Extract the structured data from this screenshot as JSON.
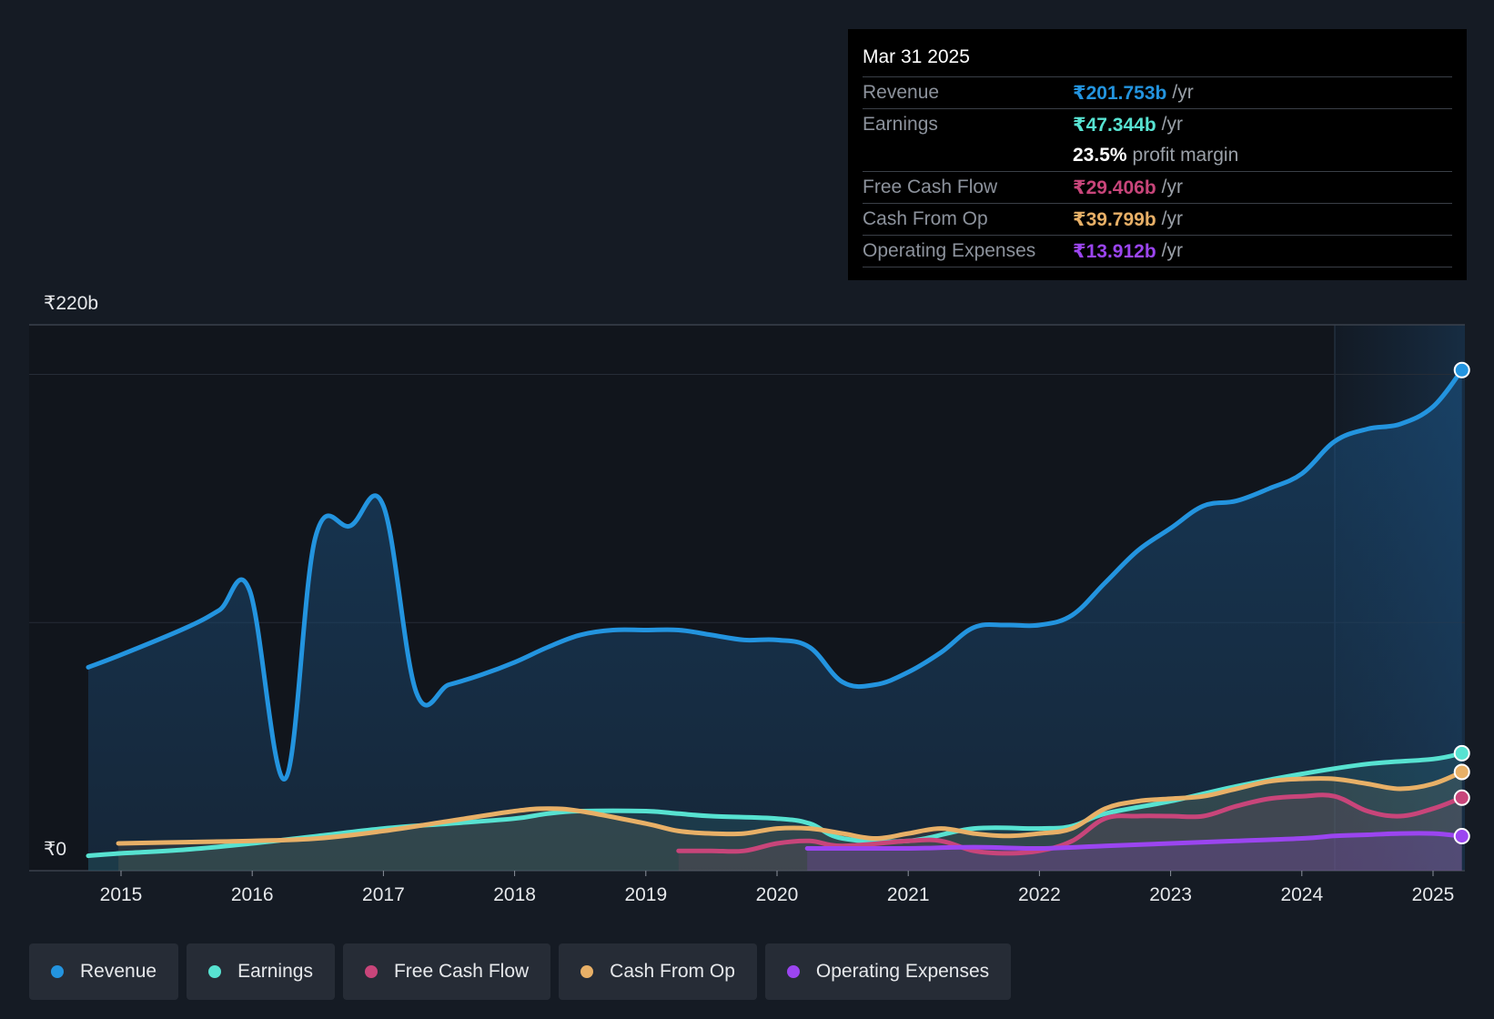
{
  "y_axis": {
    "top_label": "₹220b",
    "bottom_label": "₹0"
  },
  "tooltip": {
    "date": "Mar 31 2025",
    "rows": [
      {
        "label": "Revenue",
        "value": "₹201.753b",
        "unit": "/yr",
        "color": "#2394df"
      },
      {
        "label": "Earnings",
        "value": "₹47.344b",
        "unit": "/yr",
        "color": "#57e2d1"
      },
      {
        "label": "",
        "value": "23.5%",
        "unit": "profit margin",
        "color": "#ffffff"
      },
      {
        "label": "Free Cash Flow",
        "value": "₹29.406b",
        "unit": "/yr",
        "color": "#c8457a"
      },
      {
        "label": "Cash From Op",
        "value": "₹39.799b",
        "unit": "/yr",
        "color": "#e8b067"
      },
      {
        "label": "Operating Expenses",
        "value": "₹13.912b",
        "unit": "/yr",
        "color": "#9b45f0"
      }
    ]
  },
  "legend": [
    {
      "label": "Revenue",
      "color": "#2394df"
    },
    {
      "label": "Earnings",
      "color": "#57e2d1"
    },
    {
      "label": "Free Cash Flow",
      "color": "#c8457a"
    },
    {
      "label": "Cash From Op",
      "color": "#e8b067"
    },
    {
      "label": "Operating Expenses",
      "color": "#9b45f0"
    }
  ],
  "chart_data": {
    "type": "line",
    "title": "",
    "xlabel": "",
    "ylabel": "",
    "x_ticks": [
      "2015",
      "2016",
      "2017",
      "2018",
      "2019",
      "2020",
      "2021",
      "2022",
      "2023",
      "2024",
      "2025"
    ],
    "ylim": [
      0,
      220
    ],
    "grid": true,
    "legend_position": "bottom",
    "series": [
      {
        "name": "Revenue",
        "color": "#2394df",
        "x": [
          2014.75,
          2015.0,
          2015.5,
          2015.75,
          2015.98,
          2016.25,
          2016.48,
          2016.75,
          2017.0,
          2017.25,
          2017.5,
          2017.75,
          2018.0,
          2018.25,
          2018.5,
          2018.75,
          2019.0,
          2019.25,
          2019.5,
          2019.75,
          2020.0,
          2020.25,
          2020.5,
          2020.75,
          2021.0,
          2021.25,
          2021.5,
          2021.75,
          2022.0,
          2022.25,
          2022.5,
          2022.75,
          2023.0,
          2023.25,
          2023.5,
          2023.75,
          2024.0,
          2024.25,
          2024.5,
          2024.75,
          2025.0,
          2025.22
        ],
        "y": [
          82,
          87,
          98,
          105,
          113,
          37,
          134,
          139,
          147,
          72,
          75,
          79,
          84,
          90,
          95,
          97,
          97,
          97,
          95,
          93,
          93,
          90,
          76,
          75,
          80,
          88,
          98,
          99,
          99,
          103,
          116,
          129,
          138,
          147,
          149,
          154,
          160,
          173,
          178,
          180,
          187,
          201.753
        ]
      },
      {
        "name": "Earnings",
        "color": "#57e2d1",
        "x": [
          2014.75,
          2015.0,
          2015.5,
          2016.0,
          2016.5,
          2017.0,
          2017.5,
          2018.0,
          2018.25,
          2018.5,
          2019.0,
          2019.25,
          2019.5,
          2020.0,
          2020.25,
          2020.5,
          2021.0,
          2021.5,
          2022.0,
          2022.25,
          2022.5,
          2023.0,
          2023.5,
          2024.0,
          2024.5,
          2025.0,
          2025.22
        ],
        "y": [
          6,
          7,
          8.5,
          11,
          14,
          17,
          19,
          21,
          23,
          24,
          24,
          23,
          22,
          21,
          19,
          13,
          12,
          17,
          17,
          18,
          23,
          28,
          34,
          39,
          43,
          45,
          47.344
        ]
      },
      {
        "name": "Free Cash Flow",
        "color": "#c8457a",
        "x": [
          2019.25,
          2019.5,
          2019.75,
          2020.0,
          2020.25,
          2020.5,
          2021.0,
          2021.25,
          2021.5,
          2021.75,
          2022.0,
          2022.25,
          2022.5,
          2022.75,
          2023.0,
          2023.25,
          2023.5,
          2023.75,
          2024.0,
          2024.25,
          2024.5,
          2024.75,
          2025.0,
          2025.22
        ],
        "y": [
          8,
          8,
          8,
          11,
          12,
          10,
          12,
          12,
          8,
          7,
          8,
          12,
          21,
          22,
          22,
          22,
          26,
          29,
          30,
          30,
          24,
          22,
          25,
          29.406
        ]
      },
      {
        "name": "Cash From Op",
        "color": "#e8b067",
        "x": [
          2014.98,
          2015.5,
          2016.0,
          2016.5,
          2017.0,
          2017.5,
          2018.0,
          2018.25,
          2018.5,
          2019.0,
          2019.25,
          2019.5,
          2019.75,
          2020.0,
          2020.25,
          2020.5,
          2020.75,
          2021.0,
          2021.25,
          2021.5,
          2021.75,
          2022.0,
          2022.25,
          2022.5,
          2022.75,
          2023.0,
          2023.25,
          2023.5,
          2023.75,
          2024.0,
          2024.25,
          2024.5,
          2024.75,
          2025.0,
          2025.22
        ],
        "y": [
          11,
          11.5,
          12,
          13,
          16,
          20,
          24,
          25,
          24,
          19,
          16,
          15,
          15,
          17,
          17,
          15,
          13,
          15,
          17,
          15,
          14,
          15,
          17,
          25,
          28,
          29,
          30,
          33,
          36,
          37,
          37,
          35,
          33,
          35,
          39.799
        ]
      },
      {
        "name": "Operating Expenses",
        "color": "#9b45f0",
        "x": [
          2020.23,
          2020.5,
          2021.0,
          2021.5,
          2022.0,
          2022.5,
          2023.0,
          2023.5,
          2024.0,
          2024.25,
          2024.5,
          2024.75,
          2025.0,
          2025.22
        ],
        "y": [
          9,
          9,
          9,
          9.5,
          9,
          10,
          11,
          12,
          13,
          14,
          14.5,
          15,
          15,
          13.912
        ]
      }
    ]
  }
}
